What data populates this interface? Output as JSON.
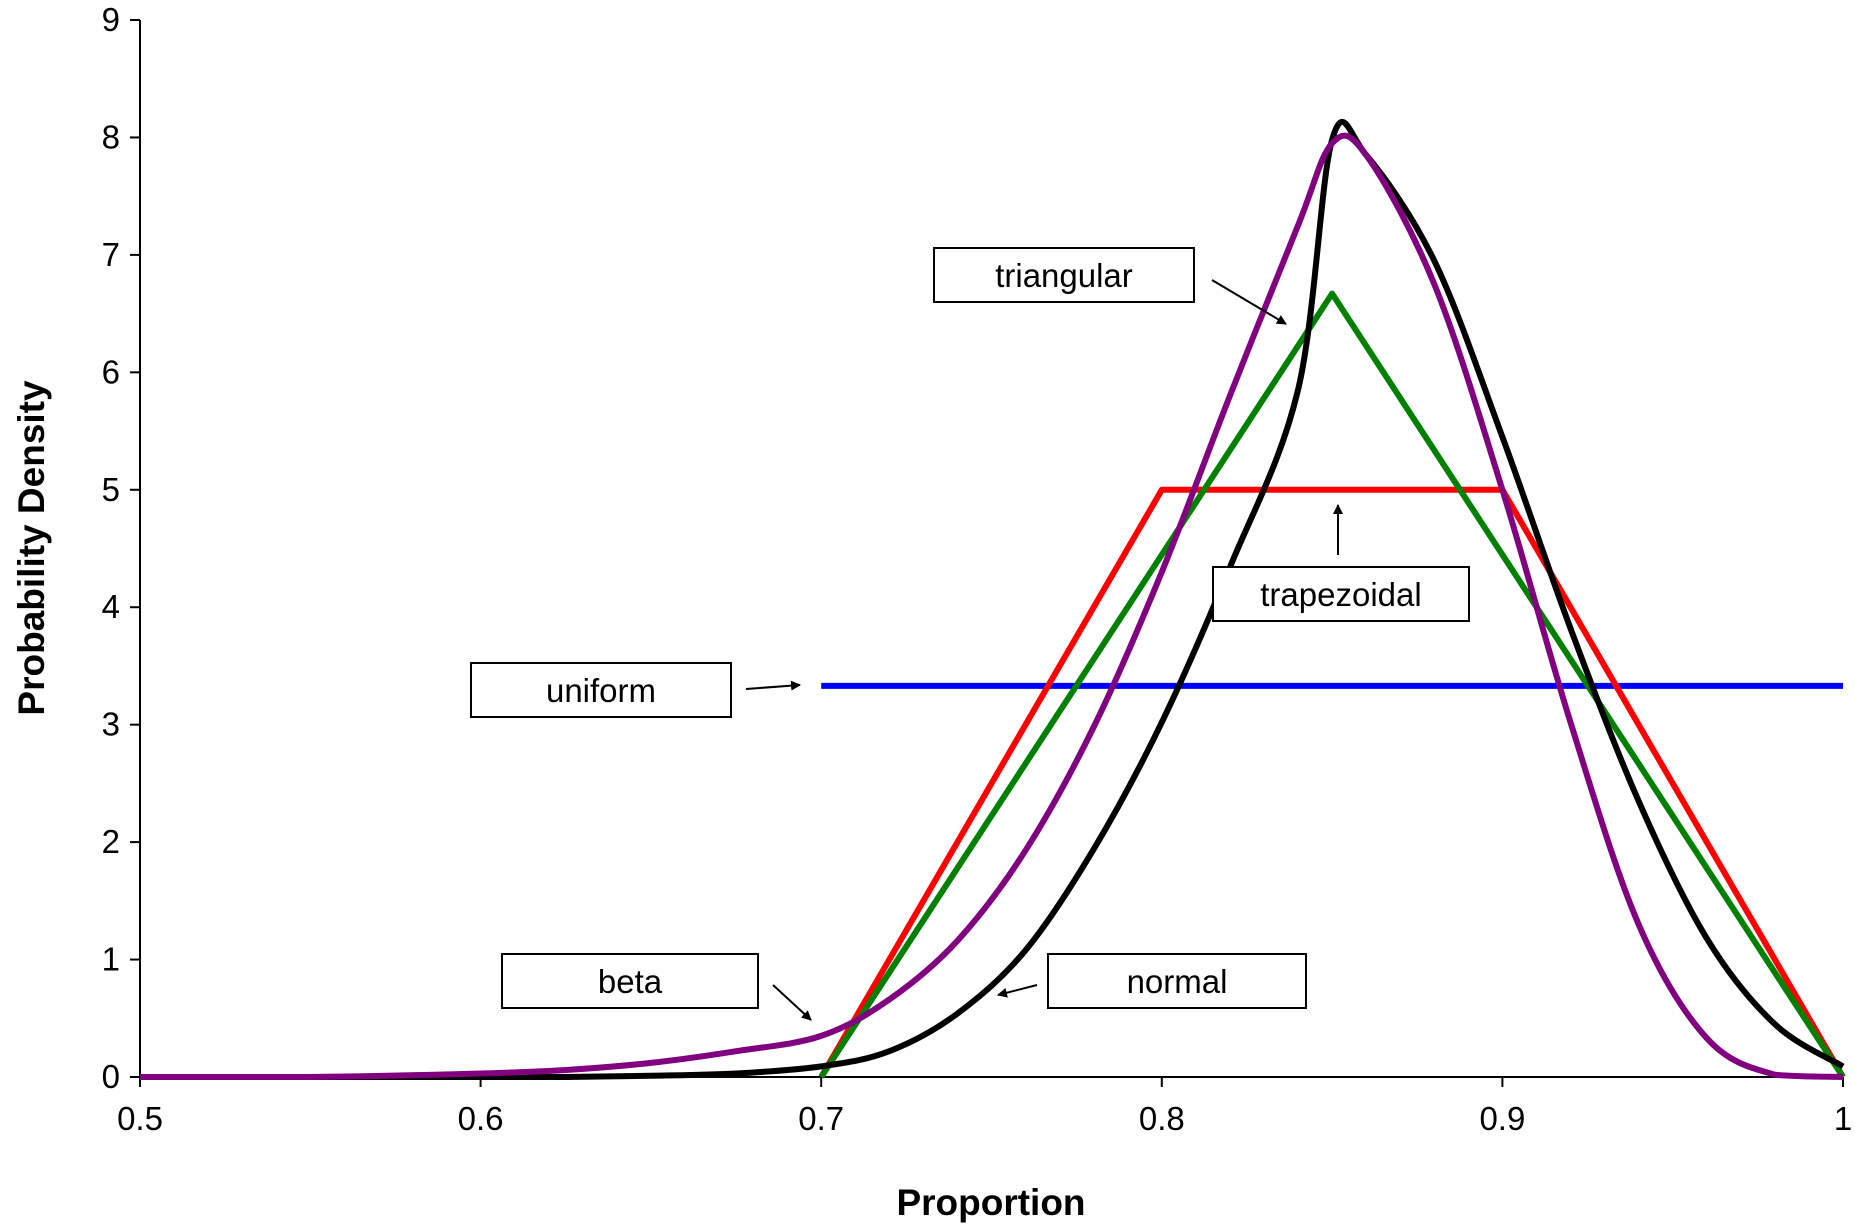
{
  "chart_data": {
    "type": "line",
    "title": "",
    "xlabel": "Proportion",
    "ylabel": "Probability Density",
    "xlim": [
      0.5,
      1
    ],
    "ylim": [
      0,
      9
    ],
    "xticks": [
      "0.5",
      "0.6",
      "0.7",
      "0.8",
      "0.9",
      "1"
    ],
    "yticks": [
      "0",
      "1",
      "2",
      "3",
      "4",
      "5",
      "6",
      "7",
      "8",
      "9"
    ],
    "grid": false,
    "legend": "none",
    "series": [
      {
        "name": "uniform",
        "color": "#0000ff",
        "x": [
          0.7,
          1.0
        ],
        "y": [
          3.33,
          3.33
        ]
      },
      {
        "name": "trapezoidal",
        "color": "#ff0000",
        "x": [
          0.7,
          0.8,
          0.9,
          1.0
        ],
        "y": [
          0.0,
          5.0,
          5.0,
          0.0
        ]
      },
      {
        "name": "triangular",
        "color": "#008000",
        "x": [
          0.7,
          0.85,
          1.0
        ],
        "y": [
          0.0,
          6.67,
          0.0
        ]
      },
      {
        "name": "normal",
        "color": "#000000",
        "x": [
          0.5,
          0.55,
          0.6,
          0.625,
          0.65,
          0.675,
          0.7,
          0.72,
          0.74,
          0.76,
          0.78,
          0.8,
          0.82,
          0.84,
          0.85,
          0.86,
          0.88,
          0.9,
          0.92,
          0.94,
          0.96,
          0.98,
          1.0
        ],
        "y": [
          0.0,
          0.0,
          0.0,
          0.0,
          0.01,
          0.03,
          0.09,
          0.22,
          0.54,
          1.08,
          1.94,
          3.02,
          4.34,
          5.85,
          7.98,
          7.85,
          6.95,
          5.45,
          3.82,
          2.35,
          1.18,
          0.45,
          0.09
        ]
      },
      {
        "name": "beta",
        "color": "#800080",
        "x": [
          0.5,
          0.55,
          0.6,
          0.625,
          0.65,
          0.675,
          0.7,
          0.72,
          0.74,
          0.76,
          0.78,
          0.8,
          0.82,
          0.84,
          0.85,
          0.86,
          0.88,
          0.9,
          0.92,
          0.94,
          0.96,
          0.98,
          1.0
        ],
        "y": [
          0.0,
          0.0,
          0.03,
          0.06,
          0.12,
          0.22,
          0.35,
          0.66,
          1.16,
          1.93,
          2.98,
          4.3,
          5.8,
          7.25,
          7.95,
          7.85,
          6.75,
          5.0,
          3.02,
          1.3,
          0.33,
          0.02,
          0.0
        ]
      }
    ],
    "annotations": [
      {
        "label": "triangular",
        "target": "triangular"
      },
      {
        "label": "trapezoidal",
        "target": "trapezoidal"
      },
      {
        "label": "uniform",
        "target": "uniform"
      },
      {
        "label": "beta",
        "target": "beta"
      },
      {
        "label": "normal",
        "target": "normal"
      }
    ]
  }
}
